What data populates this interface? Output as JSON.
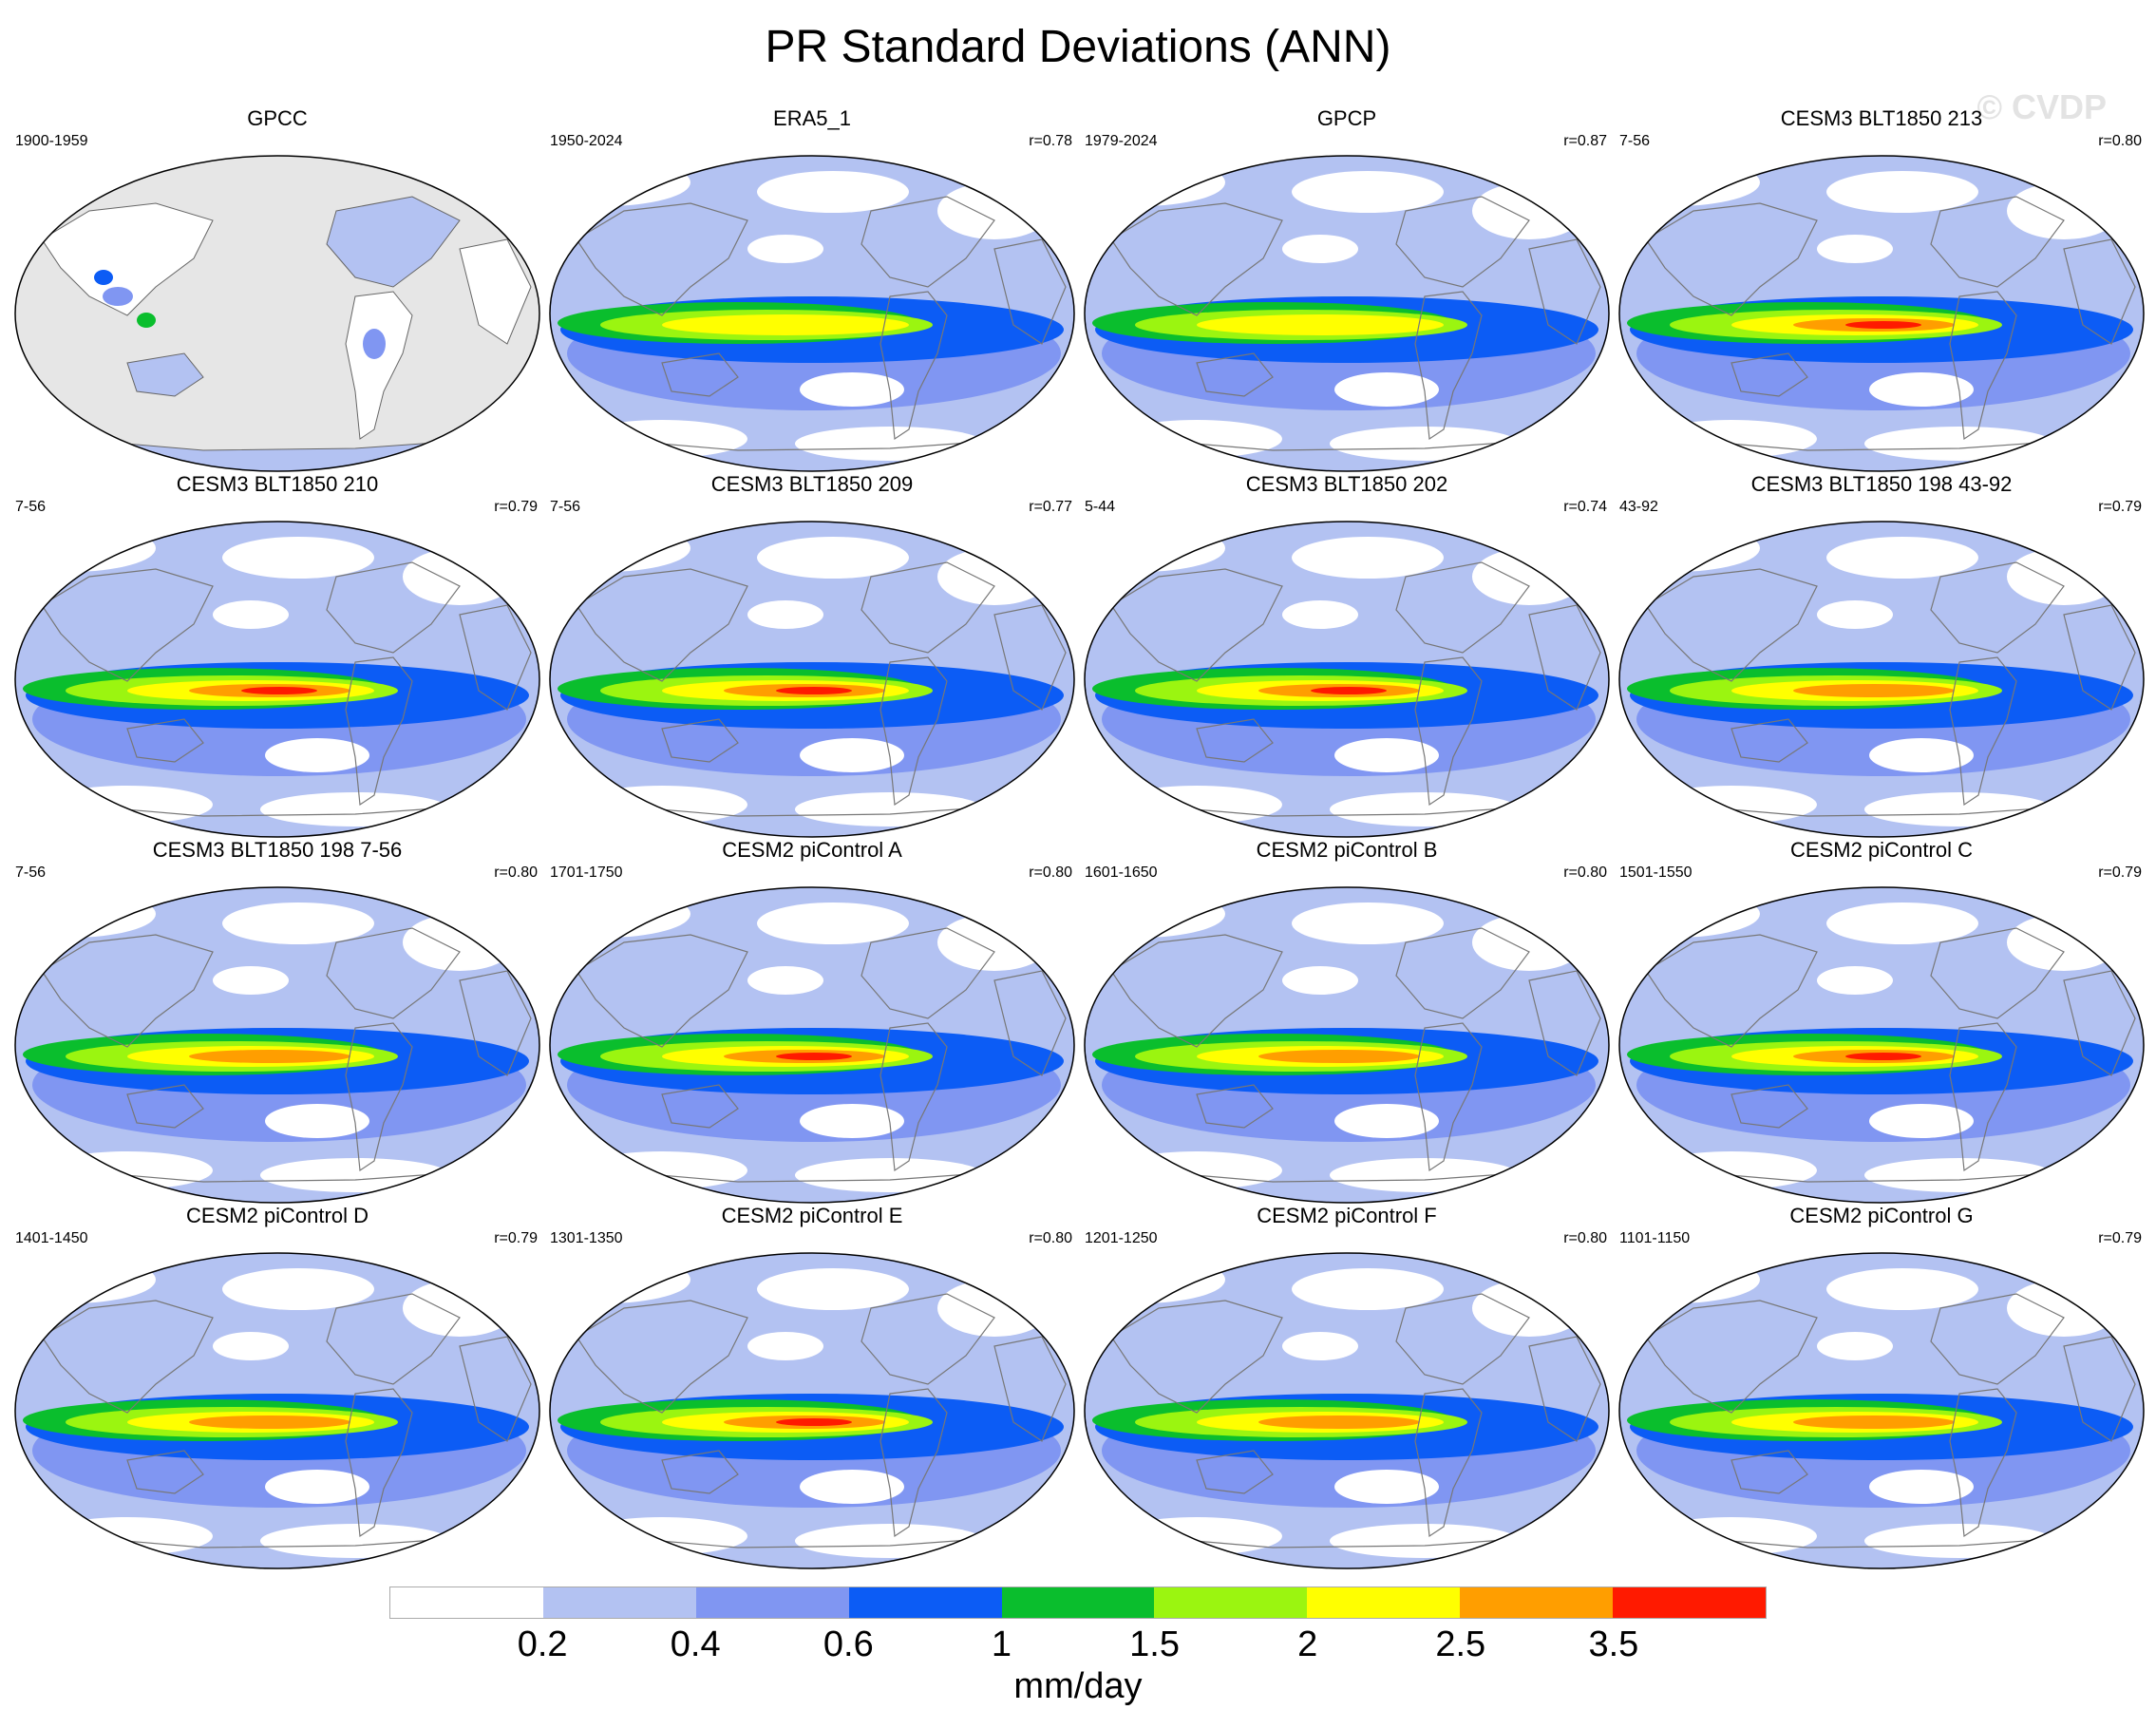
{
  "figure": {
    "title": "PR Standard Deviations (ANN)",
    "watermark": "© CVDP",
    "units": "mm/day"
  },
  "colorbar": {
    "colors": [
      "#ffffff",
      "#b3c2f2",
      "#8096f2",
      "#0c5cf5",
      "#0abe2d",
      "#9bf510",
      "#ffff00",
      "#ff9e00",
      "#ff1a00"
    ],
    "labels": [
      "0.2",
      "0.4",
      "0.6",
      "1",
      "1.5",
      "2",
      "2.5",
      "3.5"
    ]
  },
  "panels": [
    {
      "name": "GPCC",
      "period": "1900-1959",
      "r": "",
      "land_only": true,
      "peak": 0
    },
    {
      "name": "ERA5_1",
      "period": "1950-2024",
      "r": "r=0.78",
      "land_only": false,
      "peak": 2
    },
    {
      "name": "GPCP",
      "period": "1979-2024",
      "r": "r=0.87",
      "land_only": false,
      "peak": 2
    },
    {
      "name": "CESM3 BLT1850 213",
      "period": "7-56",
      "r": "r=0.80",
      "land_only": false,
      "peak": 4
    },
    {
      "name": "CESM3 BLT1850 210",
      "period": "7-56",
      "r": "r=0.79",
      "land_only": false,
      "peak": 4
    },
    {
      "name": "CESM3 BLT1850 209",
      "period": "7-56",
      "r": "r=0.77",
      "land_only": false,
      "peak": 4
    },
    {
      "name": "CESM3 BLT1850 202",
      "period": "5-44",
      "r": "r=0.74",
      "land_only": false,
      "peak": 4
    },
    {
      "name": "CESM3 BLT1850 198 43-92",
      "period": "43-92",
      "r": "r=0.79",
      "land_only": false,
      "peak": 3
    },
    {
      "name": "CESM3 BLT1850 198 7-56",
      "period": "7-56",
      "r": "r=0.80",
      "land_only": false,
      "peak": 3
    },
    {
      "name": "CESM2 piControl A",
      "period": "1701-1750",
      "r": "r=0.80",
      "land_only": false,
      "peak": 4
    },
    {
      "name": "CESM2 piControl B",
      "period": "1601-1650",
      "r": "r=0.80",
      "land_only": false,
      "peak": 3
    },
    {
      "name": "CESM2 piControl C",
      "period": "1501-1550",
      "r": "r=0.79",
      "land_only": false,
      "peak": 4
    },
    {
      "name": "CESM2 piControl D",
      "period": "1401-1450",
      "r": "r=0.79",
      "land_only": false,
      "peak": 3
    },
    {
      "name": "CESM2 piControl E",
      "period": "1301-1350",
      "r": "r=0.80",
      "land_only": false,
      "peak": 4
    },
    {
      "name": "CESM2 piControl F",
      "period": "1201-1250",
      "r": "r=0.80",
      "land_only": false,
      "peak": 3
    },
    {
      "name": "CESM2 piControl G",
      "period": "1101-1150",
      "r": "r=0.79",
      "land_only": false,
      "peak": 3
    }
  ]
}
